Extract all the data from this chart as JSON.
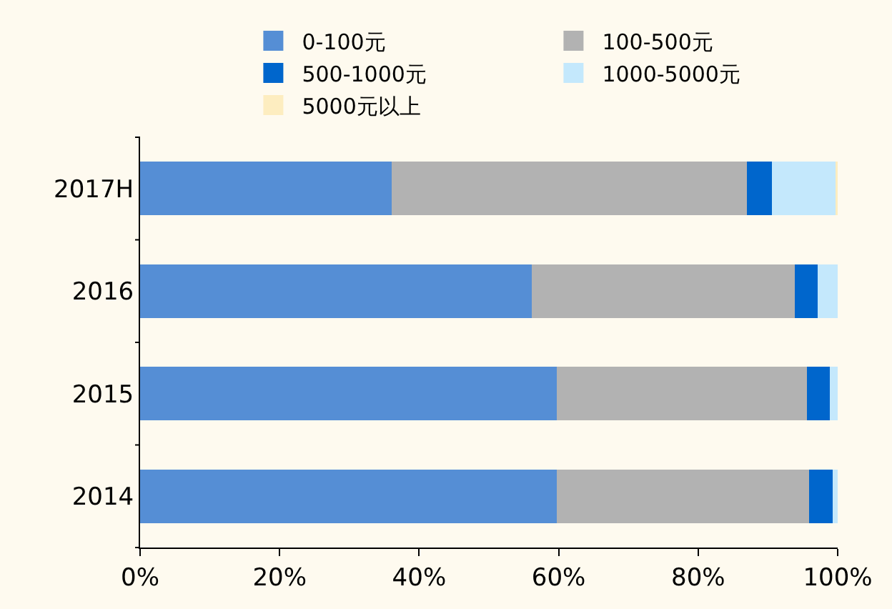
{
  "chart_data": {
    "type": "bar",
    "orientation": "horizontal",
    "stacked": true,
    "categories": [
      "2017H",
      "2016",
      "2015",
      "2014"
    ],
    "series": [
      {
        "name": "0-100元",
        "color": "#558ed5",
        "values": [
          36.2,
          56.3,
          59.9,
          59.9
        ]
      },
      {
        "name": "100-500元",
        "color": "#b2b2b2",
        "values": [
          50.9,
          37.7,
          35.8,
          36.2
        ]
      },
      {
        "name": "500-1000元",
        "color": "#0066cc",
        "values": [
          3.6,
          3.3,
          3.3,
          3.3
        ]
      },
      {
        "name": "1000-5000元",
        "color": "#c4e8fc",
        "values": [
          9.1,
          2.7,
          1.0,
          0.6
        ]
      },
      {
        "name": "5000元以上",
        "color": "#fdedc0",
        "values": [
          0.2,
          null,
          null,
          null
        ]
      }
    ],
    "xlim": [
      0,
      100
    ],
    "xticks": [
      {
        "value": 0,
        "label": "0%"
      },
      {
        "value": 20,
        "label": "20%"
      },
      {
        "value": 40,
        "label": "40%"
      },
      {
        "value": 60,
        "label": "60%"
      },
      {
        "value": 80,
        "label": "80%"
      },
      {
        "value": 100,
        "label": "100%"
      }
    ],
    "grid": false,
    "legend": "top"
  }
}
